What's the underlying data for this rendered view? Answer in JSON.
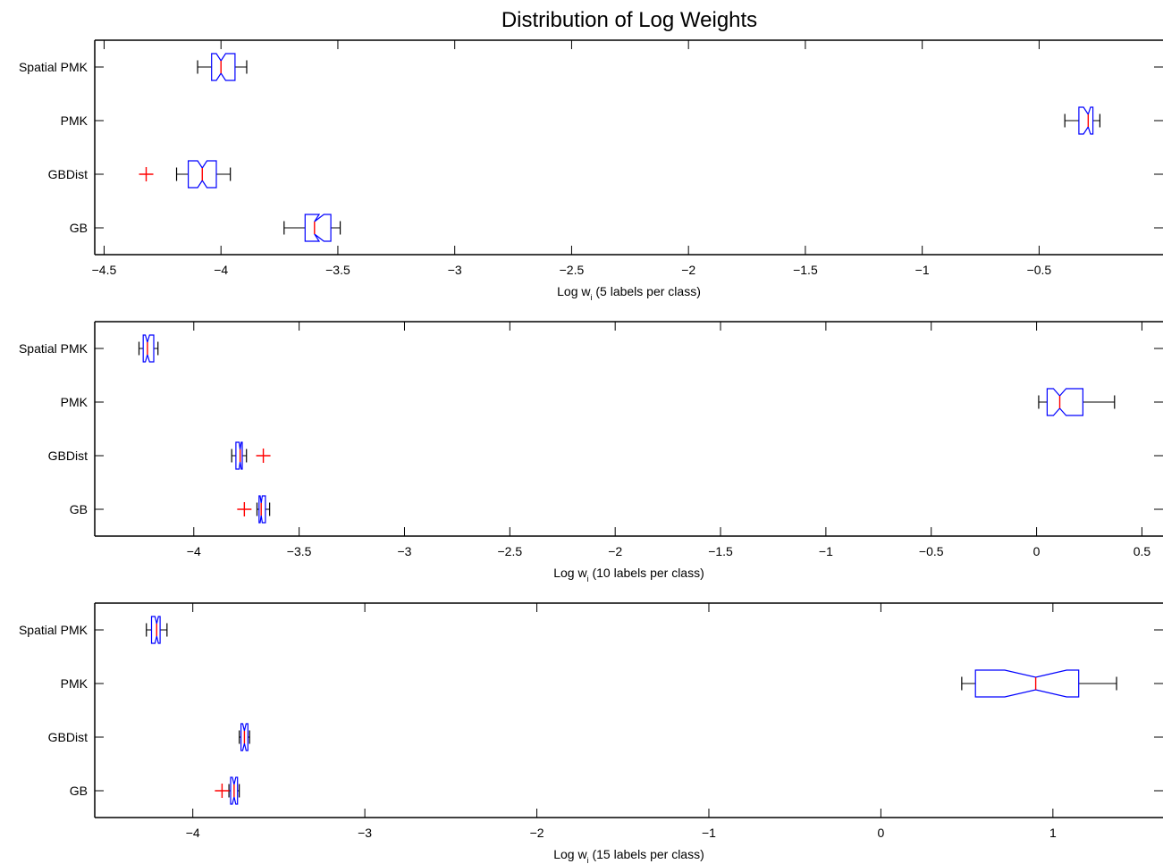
{
  "figure": {
    "title": "Distribution of Log Weights"
  },
  "colors": {
    "box": "#0000ff",
    "median": "#ff0000",
    "outlier": "#ff0000",
    "whisker": "#000000",
    "axis": "#000000"
  },
  "chart_data": [
    {
      "type": "boxplot",
      "orientation": "horizontal",
      "notched": true,
      "xlabel": "Log w_i (5 labels per class)",
      "xlabel_parts": {
        "pre": "Log w",
        "sub": "i",
        "post": " (5 labels per class)"
      },
      "xlim": [
        -4.54,
        0.03
      ],
      "xticks": [
        -4.5,
        -4,
        -3.5,
        -3,
        -2.5,
        -2,
        -1.5,
        -1,
        -0.5
      ],
      "xtick_labels": [
        "−4.5",
        "−4",
        "−3.5",
        "−3",
        "−2.5",
        "−2",
        "−1.5",
        "−1",
        "−0.5"
      ],
      "categories": [
        "GB",
        "GBDist",
        "PMK",
        "Spatial PMK"
      ],
      "series": [
        {
          "label": "GB",
          "whisker_low": -3.73,
          "q1": -3.64,
          "median": -3.6,
          "q3": -3.53,
          "whisker_high": -3.49,
          "notch_low": -3.58,
          "notch_high": -3.56,
          "outliers": []
        },
        {
          "label": "GBDist",
          "whisker_low": -4.19,
          "q1": -4.14,
          "median": -4.08,
          "q3": -4.02,
          "whisker_high": -3.96,
          "notch_low": -4.1,
          "notch_high": -4.06,
          "outliers": [
            -4.32
          ]
        },
        {
          "label": "PMK",
          "whisker_low": -0.39,
          "q1": -0.33,
          "median": -0.29,
          "q3": -0.27,
          "whisker_high": -0.24,
          "notch_low": -0.31,
          "notch_high": -0.28,
          "outliers": []
        },
        {
          "label": "Spatial PMK",
          "whisker_low": -4.1,
          "q1": -4.04,
          "median": -4.0,
          "q3": -3.94,
          "whisker_high": -3.89,
          "notch_low": -4.02,
          "notch_high": -3.98,
          "outliers": []
        }
      ]
    },
    {
      "type": "boxplot",
      "orientation": "horizontal",
      "notched": true,
      "xlabel": "Log w_i (10 labels per class)",
      "xlabel_parts": {
        "pre": "Log w",
        "sub": "i",
        "post": " (10 labels per class)"
      },
      "xlim": [
        -4.47,
        0.6
      ],
      "xticks": [
        -4,
        -3.5,
        -3,
        -2.5,
        -2,
        -1.5,
        -1,
        -0.5,
        0,
        0.5
      ],
      "xtick_labels": [
        "−4",
        "−3.5",
        "−3",
        "−2.5",
        "−2",
        "−1.5",
        "−1",
        "−0.5",
        "0",
        "0.5"
      ],
      "categories": [
        "GB",
        "GBDist",
        "PMK",
        "Spatial PMK"
      ],
      "series": [
        {
          "label": "GB",
          "whisker_low": -3.7,
          "q1": -3.69,
          "median": -3.68,
          "q3": -3.66,
          "whisker_high": -3.64,
          "notch_low": -3.685,
          "notch_high": -3.675,
          "outliers": [
            -3.76
          ]
        },
        {
          "label": "GBDist",
          "whisker_low": -3.82,
          "q1": -3.8,
          "median": -3.78,
          "q3": -3.77,
          "whisker_high": -3.75,
          "notch_low": -3.785,
          "notch_high": -3.775,
          "outliers": [
            -3.67
          ]
        },
        {
          "label": "PMK",
          "whisker_low": 0.01,
          "q1": 0.05,
          "median": 0.11,
          "q3": 0.22,
          "whisker_high": 0.37,
          "notch_low": 0.08,
          "notch_high": 0.14,
          "outliers": []
        },
        {
          "label": "Spatial PMK",
          "whisker_low": -4.26,
          "q1": -4.24,
          "median": -4.22,
          "q3": -4.19,
          "whisker_high": -4.17,
          "notch_low": -4.23,
          "notch_high": -4.21,
          "outliers": []
        }
      ]
    },
    {
      "type": "boxplot",
      "orientation": "horizontal",
      "notched": true,
      "xlabel": "Log w_i (15 labels per class)",
      "xlabel_parts": {
        "pre": "Log w",
        "sub": "i",
        "post": " (15 labels per class)"
      },
      "xlim": [
        -4.57,
        1.64
      ],
      "xticks": [
        -4,
        -3,
        -2,
        -1,
        0,
        1
      ],
      "xtick_labels": [
        "−4",
        "−3",
        "−2",
        "−1",
        "0",
        "1"
      ],
      "categories": [
        "GB",
        "GBDist",
        "PMK",
        "Spatial PMK"
      ],
      "series": [
        {
          "label": "GB",
          "whisker_low": -3.79,
          "q1": -3.78,
          "median": -3.76,
          "q3": -3.74,
          "whisker_high": -3.73,
          "notch_low": -3.77,
          "notch_high": -3.75,
          "outliers": [
            -3.83
          ]
        },
        {
          "label": "GBDist",
          "whisker_low": -3.73,
          "q1": -3.72,
          "median": -3.7,
          "q3": -3.68,
          "whisker_high": -3.67,
          "notch_low": -3.71,
          "notch_high": -3.69,
          "outliers": []
        },
        {
          "label": "PMK",
          "whisker_low": 0.47,
          "q1": 0.55,
          "median": 0.9,
          "q3": 1.15,
          "whisker_high": 1.37,
          "notch_low": 0.72,
          "notch_high": 1.08,
          "outliers": []
        },
        {
          "label": "Spatial PMK",
          "whisker_low": -4.27,
          "q1": -4.24,
          "median": -4.21,
          "q3": -4.19,
          "whisker_high": -4.15,
          "notch_low": -4.22,
          "notch_high": -4.2,
          "outliers": []
        }
      ]
    }
  ]
}
